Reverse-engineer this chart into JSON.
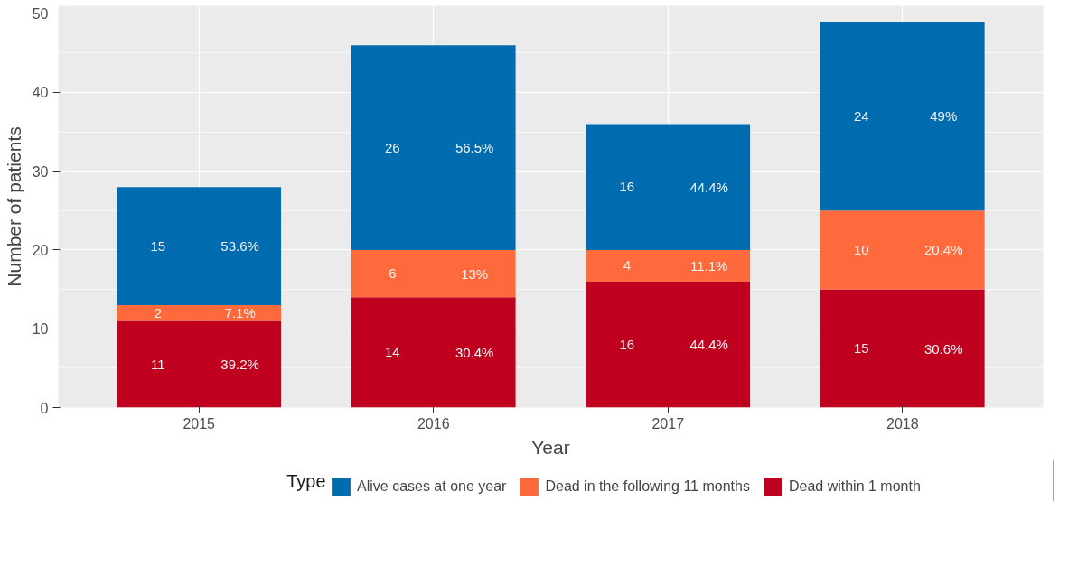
{
  "chart_data": {
    "type": "bar",
    "stacked": true,
    "xlabel": "Year",
    "ylabel": "Number of patients",
    "legend_title": "Type",
    "legend": "bottom",
    "categories": [
      "2015",
      "2016",
      "2017",
      "2018"
    ],
    "series": [
      {
        "name": "Dead within 1 month",
        "color": "#c0001f",
        "values": [
          11,
          14,
          16,
          15
        ]
      },
      {
        "name": "Dead in the following 11 months",
        "color": "#ff6a3d",
        "values": [
          2,
          6,
          4,
          10
        ]
      },
      {
        "name": "Alive cases at one year",
        "color": "#006cb0",
        "values": [
          15,
          26,
          16,
          24
        ]
      }
    ],
    "annotations": [
      "39.2%",
      "30.4%",
      "44.4%",
      "30.6%",
      "7.1%",
      "13%",
      "11.1%",
      "20.4%",
      "53.6%",
      "56.5%",
      "44.4%",
      "49%"
    ],
    "data_labels": true,
    "ylim": [
      0,
      51
    ],
    "yticks": [
      0,
      10,
      20,
      30,
      40,
      50
    ],
    "grid": true
  }
}
